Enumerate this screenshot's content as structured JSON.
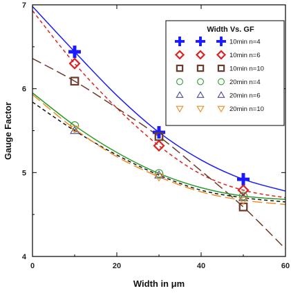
{
  "chart_data": {
    "type": "scatter",
    "xlabel": "Width in μm",
    "ylabel": "Gauge Factor",
    "xlim": [
      0,
      60
    ],
    "ylim": [
      4,
      7
    ],
    "x_ticks": [
      0,
      20,
      40,
      60
    ],
    "y_ticks": [
      4,
      5,
      6,
      7
    ],
    "grid": false,
    "legend": {
      "title": "Width Vs. GF",
      "placement": "top-right"
    },
    "series": [
      {
        "name": "10min n=4",
        "marker": "plus",
        "color": "#1a1aff",
        "x": [
          10,
          30,
          50
        ],
        "y": [
          6.44,
          5.48,
          4.92
        ]
      },
      {
        "name": "10min n=6",
        "marker": "diamond",
        "color": "#e02020",
        "x": [
          10,
          30,
          50
        ],
        "y": [
          6.3,
          5.32,
          4.79
        ]
      },
      {
        "name": "10min n=10",
        "marker": "square",
        "color": "#6b3a2a",
        "x": [
          10,
          30,
          50
        ],
        "y": [
          6.09,
          5.43,
          4.59
        ]
      },
      {
        "name": "20min n=4",
        "marker": "circle",
        "color": "#2a9a2a",
        "x": [
          10,
          30,
          50
        ],
        "y": [
          5.56,
          4.99,
          4.72
        ]
      },
      {
        "name": "20min n=6",
        "marker": "triangle",
        "color": "#4a4a9a",
        "x": [
          10,
          30,
          50
        ],
        "y": [
          5.5,
          4.97,
          4.7
        ]
      },
      {
        "name": "20min n=10",
        "marker": "tri-down",
        "color": "#f08a20",
        "x": [
          10,
          30,
          50
        ],
        "y": [
          5.52,
          4.95,
          4.67
        ]
      }
    ],
    "fit_curves": [
      {
        "color": "#1a1aff",
        "dash": "solid",
        "x": [
          0,
          10,
          20,
          30,
          40,
          50,
          60
        ],
        "y": [
          6.98,
          6.44,
          5.92,
          5.48,
          5.15,
          4.92,
          4.78
        ]
      },
      {
        "color": "#e02020",
        "dash": "short",
        "x": [
          0,
          10,
          20,
          30,
          40,
          50,
          60
        ],
        "y": [
          6.93,
          6.3,
          5.77,
          5.32,
          4.98,
          4.79,
          4.7
        ]
      },
      {
        "color": "#6b3a2a",
        "dash": "long",
        "x": [
          0,
          10,
          20,
          30,
          40,
          50,
          60
        ],
        "y": [
          6.36,
          6.09,
          5.77,
          5.43,
          5.02,
          4.59,
          4.09
        ]
      },
      {
        "color": "#2a9a2a",
        "dash": "solid",
        "x": [
          0,
          10,
          20,
          30,
          40,
          50,
          60
        ],
        "y": [
          5.95,
          5.56,
          5.24,
          4.99,
          4.82,
          4.72,
          4.68
        ]
      },
      {
        "color": "#111111",
        "dash": "short",
        "x": [
          0,
          10,
          20,
          30,
          40,
          50,
          60
        ],
        "y": [
          5.84,
          5.5,
          5.21,
          4.97,
          4.79,
          4.7,
          4.65
        ]
      },
      {
        "color": "#f08a20",
        "dash": "long",
        "x": [
          0,
          10,
          20,
          30,
          40,
          50,
          60
        ],
        "y": [
          5.93,
          5.52,
          5.19,
          4.95,
          4.77,
          4.67,
          4.62
        ]
      }
    ]
  }
}
